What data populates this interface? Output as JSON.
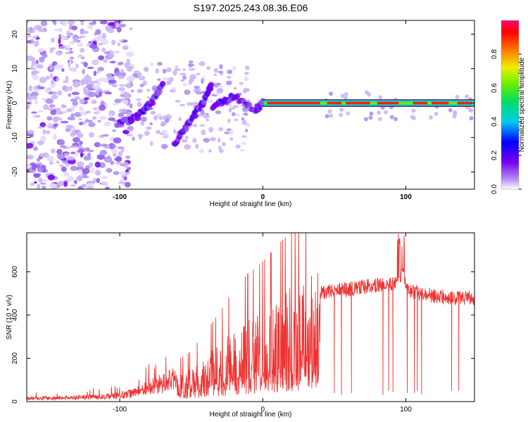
{
  "chart_data": [
    {
      "type": "heatmap",
      "title": "S197.2025.243.08.36.E06",
      "xlabel": "Height of straight line (km)",
      "ylabel": "Frequency (Hz)",
      "xlim": [
        -165,
        148
      ],
      "ylim": [
        -25,
        24
      ],
      "xticks": [
        -100,
        0,
        100
      ],
      "yticks": [
        -20,
        -10,
        0,
        10,
        20
      ],
      "colorbar": {
        "label": "Normalized spectral amplitude",
        "range": [
          0,
          1
        ],
        "ticks": [
          "0.0",
          "0.2",
          "0.4",
          "0.6",
          "0.8"
        ]
      },
      "features": {
        "noise_region_x": [
          -165,
          -100
        ],
        "tonal_line_start_x": 0,
        "tonal_line_frequency": 0,
        "chirp_ridges": [
          {
            "x": [
              -100,
              -88,
              -78,
              -70
            ],
            "y": [
              -6,
              -4,
              0,
              5
            ]
          },
          {
            "x": [
              -62,
              -52,
              -42,
              -36
            ],
            "y": [
              -12,
              -6,
              0,
              5
            ]
          },
          {
            "x": [
              -35,
              -20,
              -5,
              0
            ],
            "y": [
              -1,
              2,
              -2,
              0
            ]
          }
        ]
      }
    },
    {
      "type": "line",
      "xlabel": "Height of straight line (km)",
      "ylabel": "SNR (10 * v/v)",
      "xlim": [
        -165,
        148
      ],
      "ylim": [
        0,
        780
      ],
      "xticks": [
        -100,
        0,
        100
      ],
      "yticks": [
        0,
        200,
        400,
        600
      ],
      "series": [
        {
          "name": "SNR",
          "color": "#ee3333",
          "envelope_x": [
            -165,
            -120,
            -100,
            -90,
            -80,
            -70,
            -60,
            -50,
            -40,
            -30,
            -20,
            -10,
            0,
            10,
            20,
            30,
            40,
            60,
            80,
            90,
            95,
            98,
            100,
            110,
            120,
            130,
            148
          ],
          "envelope_y": [
            15,
            20,
            28,
            40,
            65,
            85,
            105,
            130,
            180,
            230,
            290,
            330,
            360,
            400,
            440,
            480,
            500,
            520,
            540,
            540,
            560,
            620,
            520,
            500,
            490,
            480,
            480
          ],
          "dropouts": [
            {
              "x": 50,
              "y": 40
            },
            {
              "x": 55,
              "y": 30
            },
            {
              "x": 62,
              "y": 40
            },
            {
              "x": 84,
              "y": 30
            },
            {
              "x": 88,
              "y": 50
            },
            {
              "x": 91,
              "y": 45
            },
            {
              "x": 101,
              "y": 40
            },
            {
              "x": 106,
              "y": 40
            },
            {
              "x": 108,
              "y": 50
            },
            {
              "x": 111,
              "y": 35
            },
            {
              "x": 132,
              "y": 50
            },
            {
              "x": 137,
              "y": 50
            }
          ]
        }
      ]
    }
  ]
}
